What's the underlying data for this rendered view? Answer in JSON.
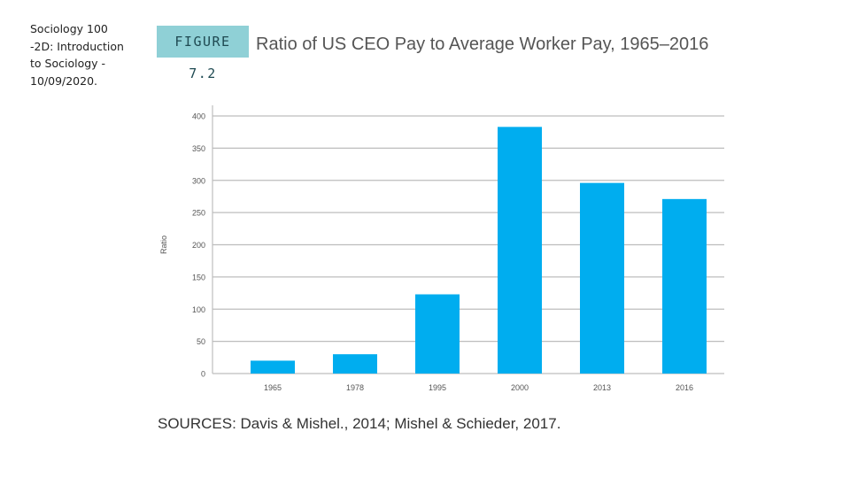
{
  "slide_note": "Sociology 100 -2D: Introduction to Sociology - 10/09/2020.",
  "figure_label": "FIGURE 7.2",
  "sources": "SOURCES: Davis & Mishel., 2014; Mishel & Schieder, 2017.",
  "colors": {
    "bar": "#00adef",
    "grid": "#bdbdbd",
    "badge": "#8fd0d6"
  },
  "chart_data": {
    "type": "bar",
    "title": "Ratio of US CEO Pay to Average Worker Pay, 1965–2016",
    "xlabel": "",
    "ylabel": "Ratio",
    "categories": [
      "1965",
      "1978",
      "1995",
      "2000",
      "2013",
      "2016"
    ],
    "values": [
      20,
      30,
      123,
      383,
      296,
      271
    ],
    "ylim": [
      0,
      400
    ],
    "yticks": [
      0,
      50,
      100,
      150,
      200,
      250,
      300,
      350,
      400
    ],
    "grid": true,
    "legend": "none"
  }
}
